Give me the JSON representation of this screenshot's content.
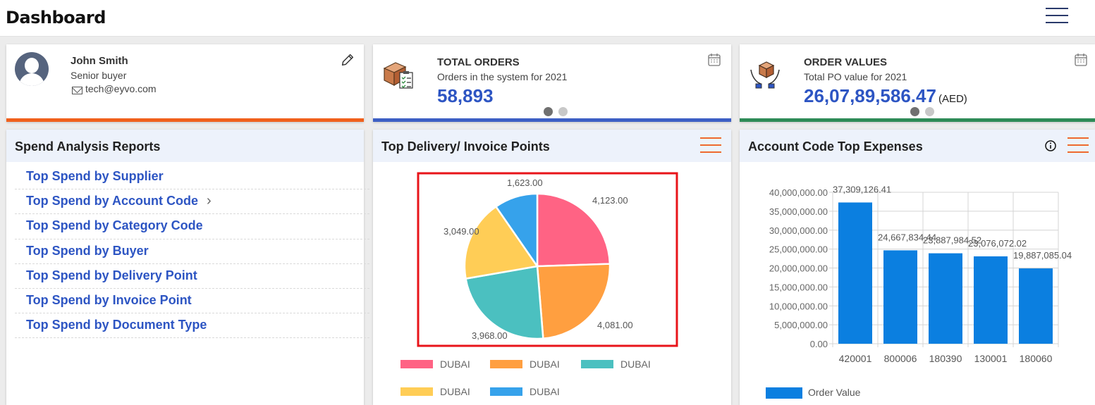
{
  "header": {
    "title": "Dashboard"
  },
  "profile": {
    "name": "John Smith",
    "role": "Senior buyer",
    "email": "tech@eyvo.com",
    "accent_color": "#f0601c"
  },
  "kpis": {
    "orders": {
      "title": "TOTAL ORDERS",
      "subtitle": "Orders in the system for 2021",
      "value": "58,893",
      "accent_color": "#3d5fc4"
    },
    "values": {
      "title": "ORDER VALUES",
      "subtitle": "Total PO value for 2021",
      "value": "26,07,89,586.47",
      "unit": "(AED)",
      "accent_color": "#2e8b57"
    }
  },
  "spend_reports": {
    "title": "Spend Analysis Reports",
    "items": [
      {
        "label": "Top Spend by Supplier",
        "has_submenu": false
      },
      {
        "label": "Top Spend by Account Code",
        "has_submenu": true
      },
      {
        "label": "Top Spend by Category Code",
        "has_submenu": false
      },
      {
        "label": "Top Spend by Buyer",
        "has_submenu": false
      },
      {
        "label": "Top Spend by Delivery Point",
        "has_submenu": false
      },
      {
        "label": "Top Spend by Invoice Point",
        "has_submenu": false
      },
      {
        "label": "Top Spend by Document Type",
        "has_submenu": false
      }
    ]
  },
  "delivery_panel": {
    "title": "Top Delivery/ Invoice Points"
  },
  "expenses_panel": {
    "title": "Account Code Top Expenses"
  },
  "chart_data": [
    {
      "type": "pie",
      "labels": [
        "DUBAI",
        "DUBAI",
        "DUBAI",
        "DUBAI",
        "DUBAI"
      ],
      "values": [
        4123.0,
        4081.0,
        3968.0,
        3049.0,
        1623.0
      ],
      "value_labels": [
        "4,123.00",
        "4,081.00",
        "3,968.00",
        "3,049.00",
        "1,623.00"
      ],
      "colors": [
        "#ff6384",
        "#ff9f40",
        "#4bc0c0",
        "#ffcd56",
        "#36a2eb"
      ],
      "legend_position": "bottom",
      "highlight_color": "#e8141a"
    },
    {
      "type": "bar",
      "categories": [
        "420001",
        "800006",
        "180390",
        "130001",
        "180060"
      ],
      "series": [
        {
          "name": "Order Value",
          "values": [
            37309126.41,
            24667834.44,
            23887984.52,
            23076072.02,
            19887085.04
          ],
          "value_labels": [
            "37,309,126.41",
            "24,667,834.44",
            "23,887,984.52",
            "23,076,072.02",
            "19,887,085.04"
          ],
          "color": "#0b7fe0"
        }
      ],
      "ylim": [
        0,
        40000000
      ],
      "yticks": [
        "40,000,000.00",
        "35,000,000.00",
        "30,000,000.00",
        "25,000,000.00",
        "20,000,000.00",
        "15,000,000.00",
        "10,000,000.00",
        "5,000,000.00",
        "0.00"
      ],
      "grid": true,
      "legend_position": "bottom-left"
    }
  ]
}
